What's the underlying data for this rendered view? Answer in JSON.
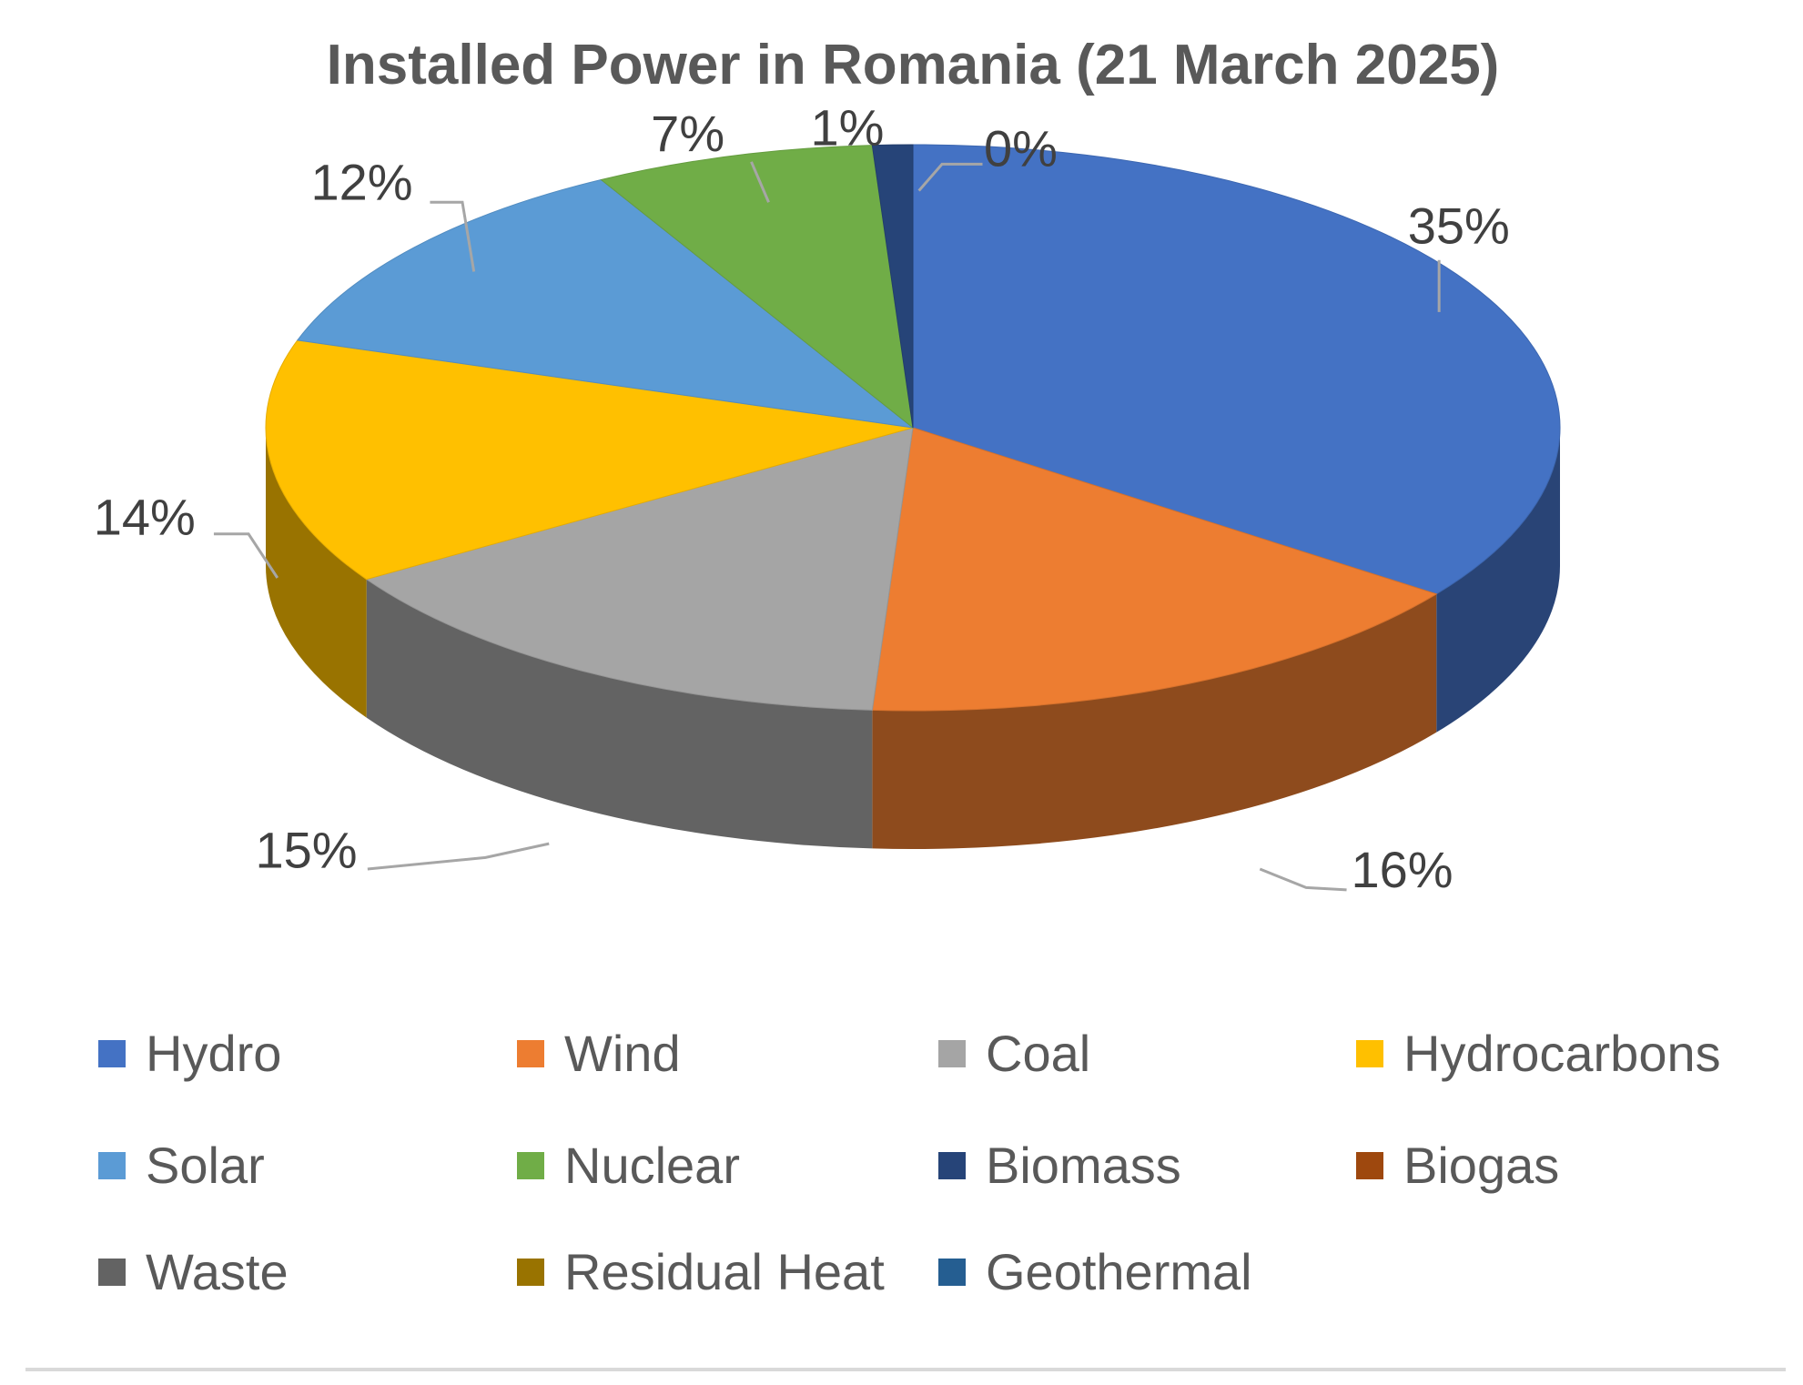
{
  "chart_data": {
    "type": "pie",
    "style": "3d",
    "title": "Installed Power in Romania (21 March 2025)",
    "categories": [
      "Hydro",
      "Wind",
      "Coal",
      "Hydrocarbons",
      "Solar",
      "Nuclear",
      "Biomass",
      "Biogas",
      "Waste",
      "Residual Heat",
      "Geothermal"
    ],
    "values": [
      35,
      16,
      15,
      14,
      12,
      7,
      1,
      0,
      0,
      0,
      0
    ],
    "data_labels": [
      "35%",
      "16%",
      "15%",
      "14%",
      "12%",
      "7%",
      "1%",
      "0%",
      "",
      "",
      ""
    ],
    "colors": [
      "#4472C4",
      "#ED7D31",
      "#A5A5A5",
      "#FFC000",
      "#5B9BD5",
      "#70AD47",
      "#264478",
      "#9E480E",
      "#636363",
      "#997300",
      "#255E91"
    ],
    "legend_position": "bottom"
  }
}
